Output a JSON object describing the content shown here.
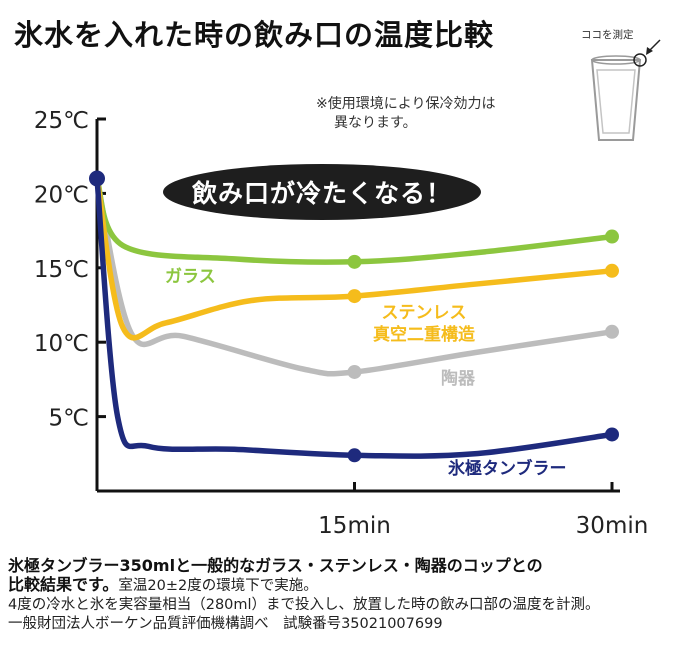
{
  "title": "氷水を入れた時の飲み口の温度比較",
  "note": [
    "※使用環境により保冷効力は",
    "異なります。"
  ],
  "banner": "飲み口が冷たくなる！",
  "cup_label": "ココを測定",
  "caption": {
    "line1": "氷極タンブラー350mlと一般的なガラス・ステンレス・陶器のコップとの",
    "line2_bold": "比較結果です。",
    "line2_rest": "室温20±2度の環境下で実施。",
    "line3": "4度の冷水と氷を実容量相当（280ml）まで投入し、放置した時の飲み口部の温度を計測。",
    "line4": "一般財団法人ボーケン品質評価機構調べ　試験番号35021007699"
  },
  "colors": {
    "glass": "#8cc63f",
    "stainless": "#f5bc1c",
    "ceramic": "#bcbcbc",
    "hyogoku": "#1e2a7d",
    "axis": "#111111"
  },
  "chart_data": {
    "type": "line",
    "title": "氷水を入れた時の飲み口の温度比較",
    "x_ticks": [
      {
        "value": 15,
        "label": "15min"
      },
      {
        "value": 30,
        "label": "30min"
      }
    ],
    "y_ticks": [
      {
        "value": 5,
        "label": "5℃"
      },
      {
        "value": 10,
        "label": "10℃"
      },
      {
        "value": 15,
        "label": "15℃"
      },
      {
        "value": 20,
        "label": "20℃"
      },
      {
        "value": 25,
        "label": "25℃"
      }
    ],
    "xlim": [
      0,
      30
    ],
    "ylim": [
      0,
      25
    ],
    "start_point": {
      "x": 0,
      "y": 21
    },
    "series": [
      {
        "name": "ガラス",
        "key": "glass",
        "color": "#8cc63f",
        "curve": [
          [
            0,
            21
          ],
          [
            1.5,
            16.5
          ],
          [
            8,
            15.6
          ],
          [
            15,
            15.4
          ],
          [
            22,
            16
          ],
          [
            30,
            17.1
          ]
        ],
        "markers": [
          [
            15,
            15.4
          ],
          [
            30,
            17.1
          ]
        ]
      },
      {
        "name": "ステンレス 真空二重構造",
        "key": "stainless",
        "color": "#f5bc1c",
        "curve": [
          [
            0,
            21
          ],
          [
            1.5,
            11
          ],
          [
            4,
            11.3
          ],
          [
            9,
            12.8
          ],
          [
            15,
            13.1
          ],
          [
            22,
            13.9
          ],
          [
            30,
            14.8
          ]
        ],
        "markers": [
          [
            15,
            13.1
          ],
          [
            30,
            14.8
          ]
        ]
      },
      {
        "name": "陶器",
        "key": "ceramic",
        "color": "#bcbcbc",
        "curve": [
          [
            0,
            21
          ],
          [
            2,
            10.6
          ],
          [
            5,
            10.4
          ],
          [
            12,
            8.2
          ],
          [
            15,
            8
          ],
          [
            22,
            9.3
          ],
          [
            30,
            10.7
          ]
        ],
        "markers": [
          [
            15,
            8
          ],
          [
            30,
            10.7
          ]
        ]
      },
      {
        "name": "氷極タンブラー",
        "key": "hyogoku",
        "color": "#1e2a7d",
        "curve": [
          [
            0,
            21
          ],
          [
            1.2,
            5
          ],
          [
            3,
            3
          ],
          [
            8,
            2.8
          ],
          [
            15,
            2.4
          ],
          [
            22,
            2.5
          ],
          [
            30,
            3.8
          ]
        ],
        "markers": [
          [
            15,
            2.4
          ],
          [
            30,
            3.8
          ]
        ]
      }
    ]
  }
}
